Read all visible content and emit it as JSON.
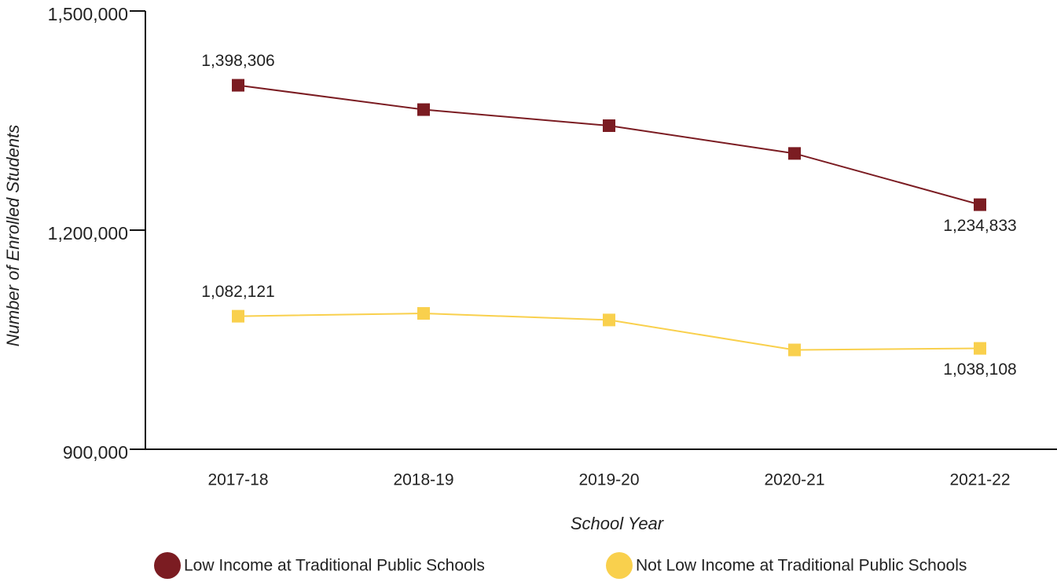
{
  "chart_data": {
    "type": "line",
    "x_label": "School Year",
    "y_label": "Number of Enrolled Students",
    "categories": [
      "2017-18",
      "2018-19",
      "2019-20",
      "2020-21",
      "2021-22"
    ],
    "series": [
      {
        "name": "Low Income at Traditional Public Schools",
        "color": "#7b1c22",
        "values": [
          1398306,
          1365000,
          1343000,
          1305000,
          1234833
        ],
        "value_labels": [
          "1,398,306",
          null,
          null,
          null,
          "1,234,833"
        ]
      },
      {
        "name": "Not Low Income at Traditional Public Schools",
        "color": "#f9d04d",
        "values": [
          1082121,
          1086000,
          1077000,
          1036000,
          1038108
        ],
        "value_labels": [
          "1,082,121",
          null,
          null,
          null,
          "1,038,108"
        ]
      }
    ],
    "ylim": [
      900000,
      1500000
    ],
    "yticks": [
      {
        "value": 900000,
        "label": "900,000"
      },
      {
        "value": 1200000,
        "label": "1,200,000"
      },
      {
        "value": 1500000,
        "label": "1,500,000"
      }
    ]
  }
}
